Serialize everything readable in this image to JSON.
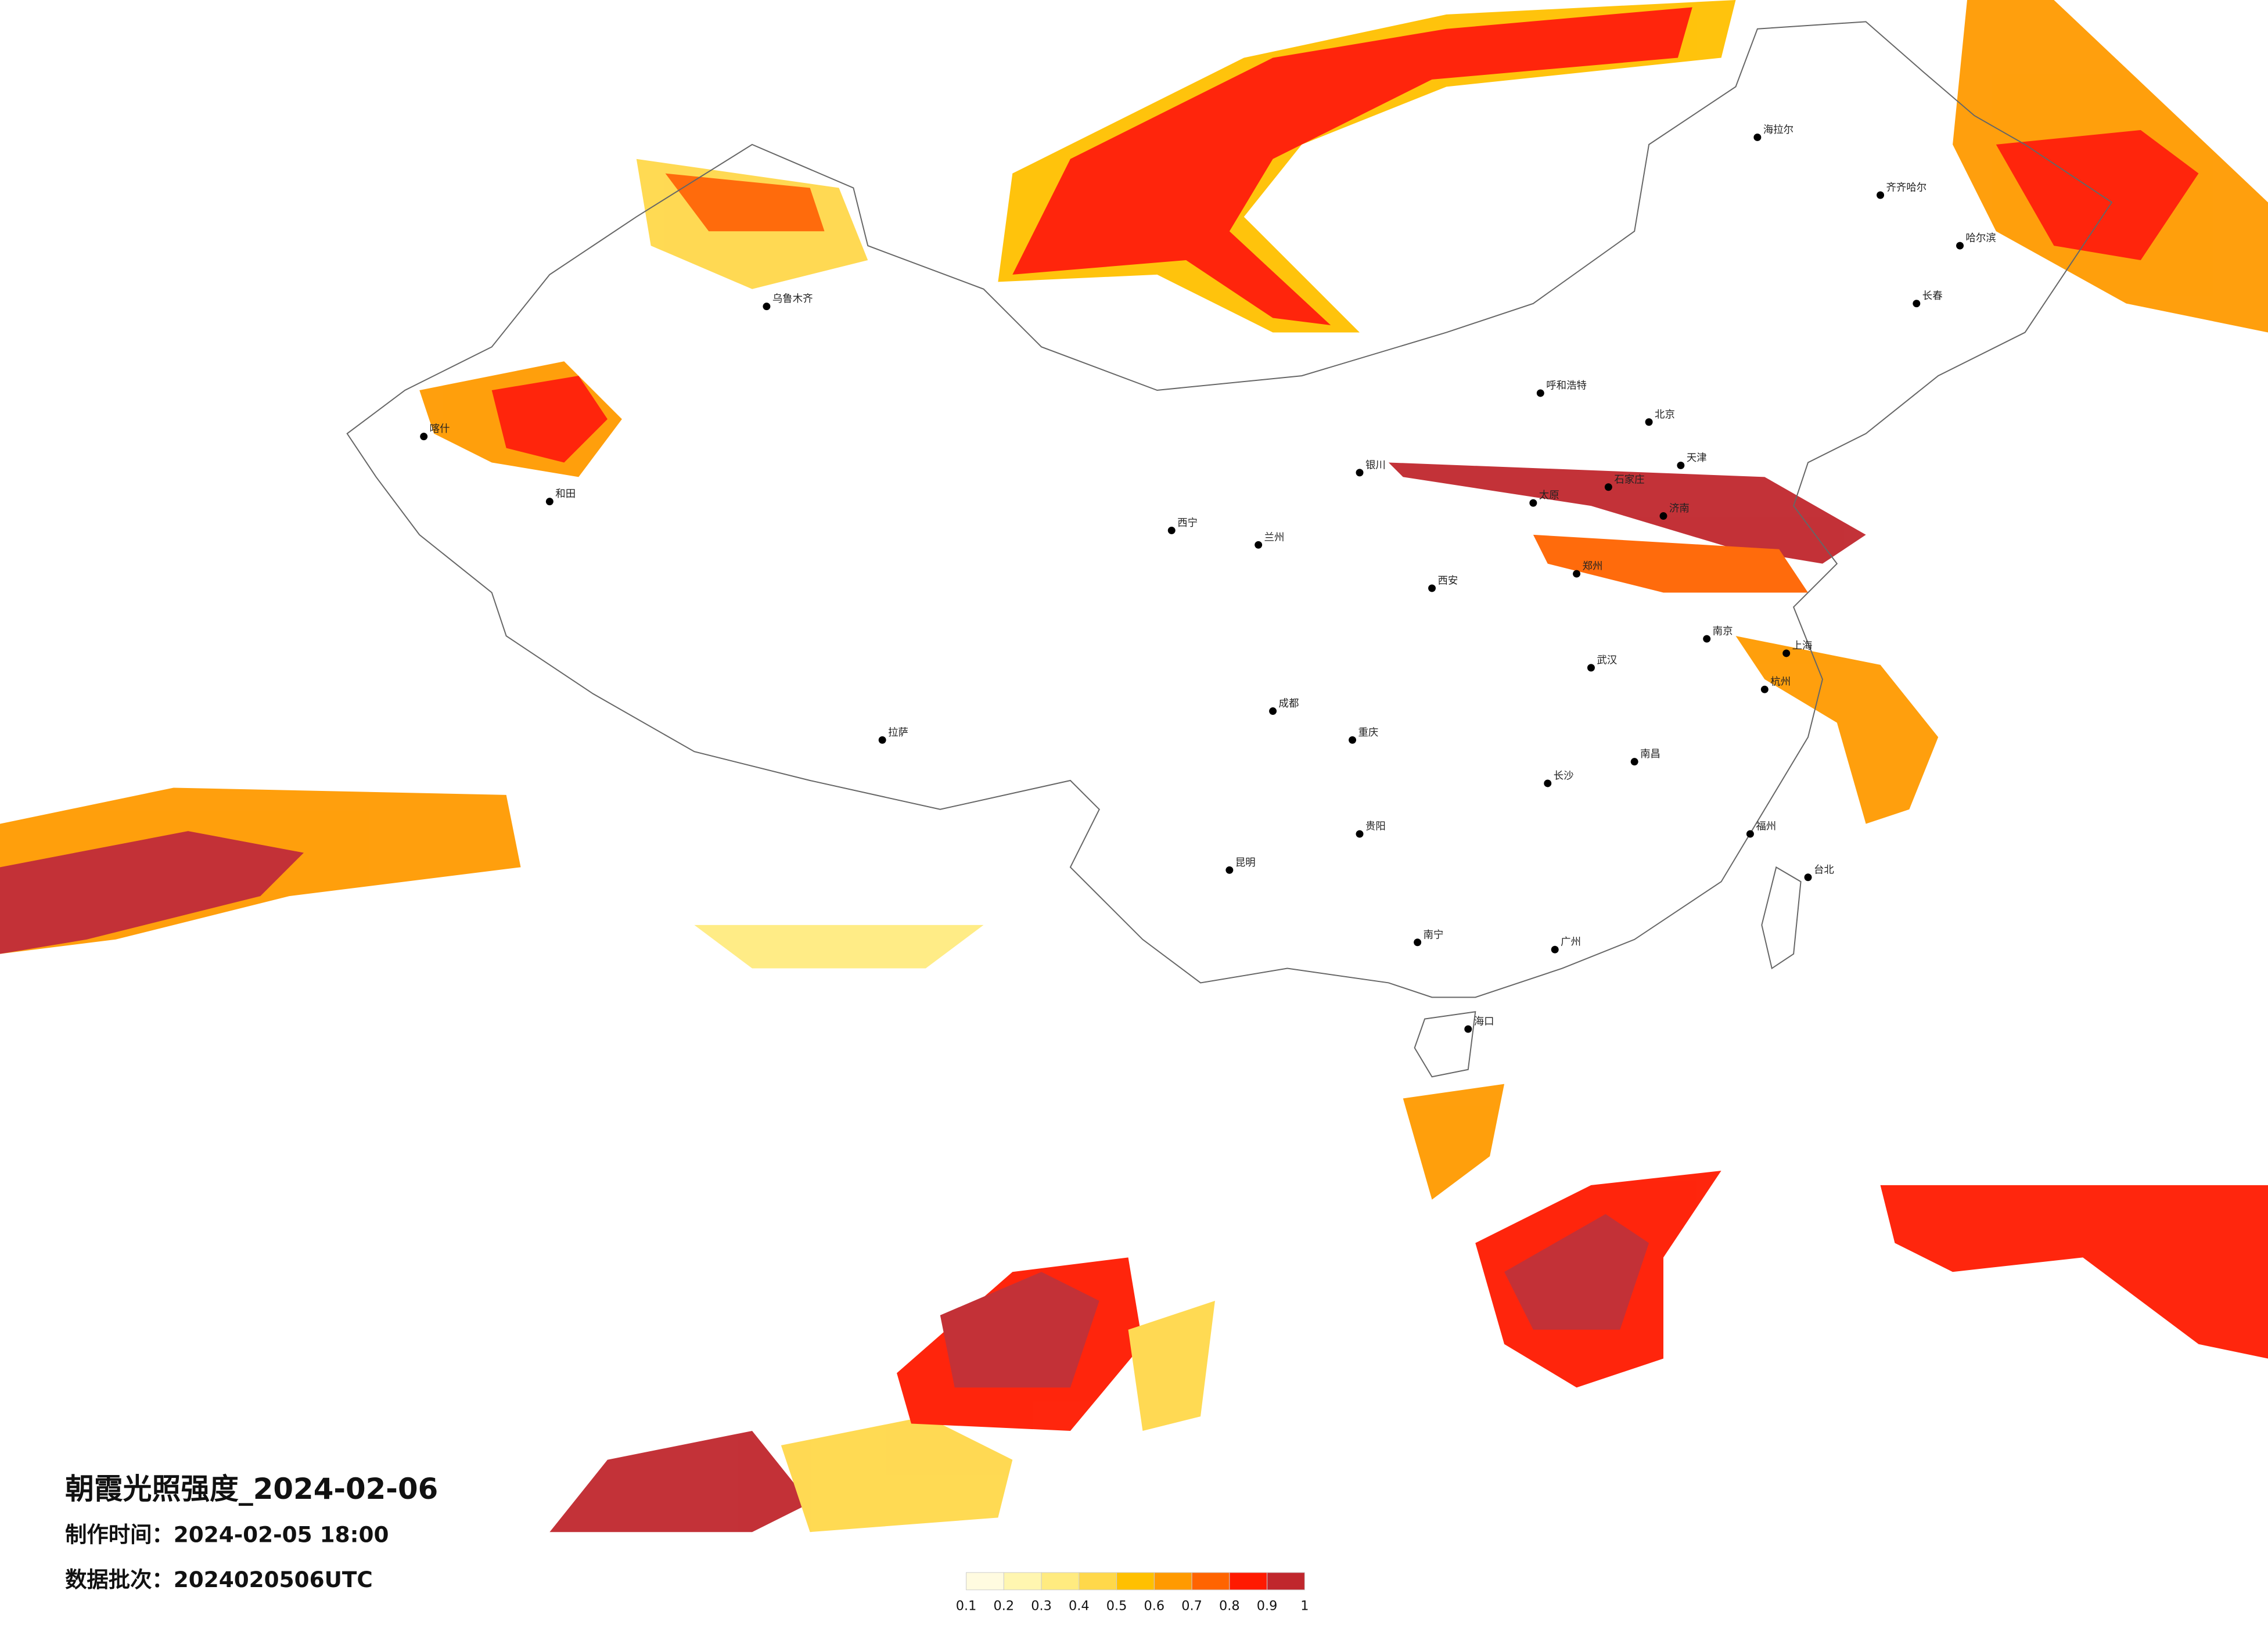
{
  "header": {
    "title": "朝霞光照强度_2024-02-06",
    "made_time": "制作时间：2024-02-05 18:00",
    "batch": "数据批次：2024020506UTC"
  },
  "legend": {
    "labels": [
      "0.1",
      "0.2",
      "0.3",
      "0.4",
      "0.5",
      "0.6",
      "0.7",
      "0.8",
      "0.9",
      "1"
    ],
    "colors": [
      "#fffbe0",
      "#fff6b0",
      "#ffeb80",
      "#ffd84a",
      "#ffc000",
      "#ff9a00",
      "#ff6400",
      "#ff1a00",
      "#c0272d"
    ]
  },
  "cities": [
    "海拉尔",
    "齐齐哈尔",
    "哈尔滨",
    "长春",
    "呼和浩特",
    "北京",
    "天津",
    "石家庄",
    "太原",
    "济南",
    "郑州",
    "西安",
    "兰州",
    "西宁",
    "银川",
    "乌鲁木齐",
    "拉萨",
    "成都",
    "重庆",
    "武汉",
    "南京",
    "上海",
    "杭州",
    "长沙",
    "南昌",
    "福州",
    "贵阳",
    "昆明",
    "南宁",
    "广州",
    "海口",
    "台北",
    "和田",
    "喀什"
  ]
}
